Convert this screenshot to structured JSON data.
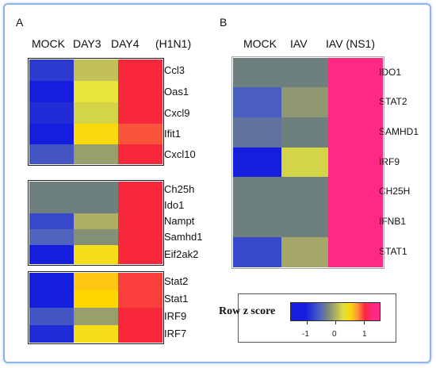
{
  "chart_data": [
    {
      "type": "heatmap",
      "panel_label": "A",
      "columns": [
        "MOCK",
        "DAY3",
        "DAY4"
      ],
      "column_note": "(H1N1)",
      "groups": [
        {
          "rows": [
            "Ccl3",
            "Oas1",
            "Cxcl9",
            "Ifit1",
            "Cxcl10"
          ],
          "values": [
            [
              -0.8,
              0.1,
              1.0
            ],
            [
              -1.0,
              0.3,
              1.0
            ],
            [
              -0.9,
              0.2,
              1.0
            ],
            [
              -1.0,
              0.5,
              0.9
            ],
            [
              -0.6,
              -0.1,
              1.0
            ]
          ]
        },
        {
          "rows": [
            "Ch25h",
            "Ido1",
            "Nampt",
            "Samhd1",
            "Eif2ak2"
          ],
          "values": [
            [
              -0.3,
              -0.3,
              1.0
            ],
            [
              -0.3,
              -0.3,
              1.0
            ],
            [
              -0.7,
              0.0,
              1.0
            ],
            [
              -0.5,
              -0.2,
              1.0
            ],
            [
              -1.0,
              0.45,
              1.0
            ]
          ]
        },
        {
          "rows": [
            "Stat2",
            "Stat1",
            "IRF9",
            "IRF7"
          ],
          "values": [
            [
              -1.0,
              0.6,
              0.95
            ],
            [
              -1.0,
              0.55,
              0.95
            ],
            [
              -0.6,
              -0.1,
              1.0
            ],
            [
              -0.9,
              0.45,
              1.0
            ]
          ]
        }
      ]
    },
    {
      "type": "heatmap",
      "panel_label": "B",
      "columns": [
        "MOCK",
        "IAV",
        "IAV (NS1)"
      ],
      "rows": [
        "IDO1",
        "STAT2",
        "SAMHD1",
        "IRF9",
        "CH25H",
        "IFNB1",
        "STAT1"
      ],
      "values": [
        [
          -0.3,
          -0.3,
          1.15
        ],
        [
          -0.55,
          -0.15,
          1.15
        ],
        [
          -0.4,
          -0.3,
          1.15
        ],
        [
          -1.0,
          0.2,
          1.15
        ],
        [
          -0.3,
          -0.3,
          1.15
        ],
        [
          -0.3,
          -0.3,
          1.15
        ],
        [
          -0.7,
          -0.05,
          1.15
        ]
      ]
    }
  ],
  "legend": {
    "title": "Row z score",
    "ticks": [
      "-1",
      "0",
      "1"
    ],
    "tick_values": [
      -1,
      0,
      1
    ],
    "range": [
      -1.5,
      1.5
    ]
  }
}
